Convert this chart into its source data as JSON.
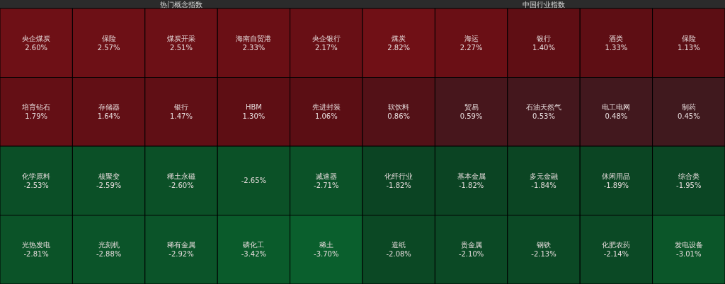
{
  "chart_data": [
    {
      "type": "other",
      "title": "热门概念指数",
      "categories": [
        "央企煤炭",
        "保险",
        "煤炭开采",
        "海南自贸港",
        "央企银行",
        "培育钻石",
        "存储器",
        "银行",
        "HBM",
        "先进封装",
        "化学原料",
        "核聚变",
        "稀土永磁",
        null,
        "减速器",
        "光热发电",
        "光刻机",
        "稀有金属",
        "磷化工",
        "稀土"
      ],
      "values": [
        2.6,
        2.57,
        2.51,
        2.33,
        2.17,
        1.79,
        1.64,
        1.47,
        1.3,
        1.06,
        -2.53,
        -2.59,
        -2.6,
        -2.65,
        -2.71,
        -2.81,
        -2.88,
        -2.92,
        -3.42,
        -3.7
      ],
      "value_labels": [
        "2.60%",
        "2.57%",
        "2.51%",
        "2.33%",
        "2.17%",
        "1.79%",
        "1.64%",
        "1.47%",
        "1.30%",
        "1.06%",
        "-2.53%",
        "-2.59%",
        "-2.60%",
        "-2.65%",
        "-2.71%",
        "-2.81%",
        "-2.88%",
        "-2.92%",
        "-3.42%",
        "-3.70%"
      ]
    },
    {
      "type": "other",
      "title": "中国行业指数",
      "categories": [
        "煤炭",
        "海运",
        "银行",
        "酒类",
        "保险",
        "软饮料",
        "贸易",
        "石油天然气",
        "电工电网",
        "制药",
        "化纤行业",
        "基本金属",
        "多元金融",
        "休闲用品",
        "综合类",
        "造纸",
        "贵金属",
        "钢铁",
        "化肥农药",
        "发电设备"
      ],
      "values": [
        2.82,
        2.27,
        1.4,
        1.33,
        1.13,
        0.86,
        0.59,
        0.53,
        0.48,
        0.45,
        -1.82,
        -1.82,
        -1.84,
        -1.89,
        -1.95,
        -2.08,
        -2.1,
        -2.13,
        -2.14,
        -3.01
      ],
      "value_labels": [
        "2.82%",
        "2.27%",
        "1.40%",
        "1.33%",
        "1.13%",
        "0.86%",
        "0.59%",
        "0.53%",
        "0.48%",
        "0.45%",
        "-1.82%",
        "-1.82%",
        "-1.84%",
        "-1.89%",
        "-1.95%",
        "-2.08%",
        "-2.10%",
        "-2.13%",
        "-2.14%",
        "-3.01%"
      ]
    }
  ]
}
